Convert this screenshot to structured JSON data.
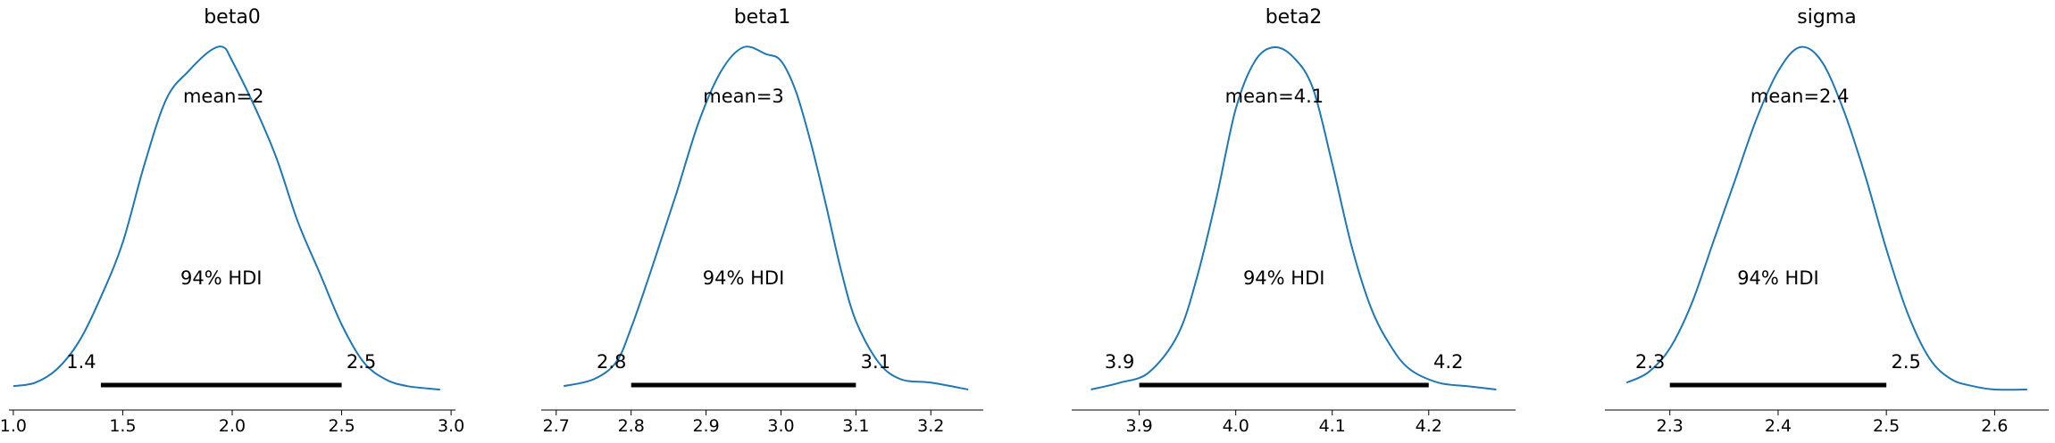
{
  "chart_data": [
    {
      "type": "area",
      "title": "beta0",
      "xlim": [
        0.98,
        3.02
      ],
      "ticks": [
        "1.0",
        "1.5",
        "2.0",
        "2.5",
        "3.0"
      ],
      "mean_label": "mean=2",
      "hdi_label": "94% HDI",
      "hdi": [
        1.4,
        2.5
      ],
      "hdi_label_low": "1.4",
      "hdi_label_high": "2.5",
      "density": {
        "x": [
          1.0,
          1.1,
          1.2,
          1.3,
          1.4,
          1.5,
          1.6,
          1.7,
          1.8,
          1.9,
          1.96,
          2.0,
          2.1,
          2.2,
          2.3,
          2.4,
          2.5,
          2.6,
          2.7,
          2.8,
          2.95
        ],
        "y": [
          0.01,
          0.02,
          0.06,
          0.14,
          0.27,
          0.43,
          0.66,
          0.85,
          0.93,
          0.99,
          1.0,
          0.96,
          0.83,
          0.68,
          0.49,
          0.34,
          0.19,
          0.08,
          0.03,
          0.01,
          0.0
        ]
      }
    },
    {
      "type": "area",
      "title": "beta1",
      "xlim": [
        2.68,
        3.27
      ],
      "ticks": [
        "2.7",
        "2.8",
        "2.9",
        "3.0",
        "3.1",
        "3.2"
      ],
      "mean_label": "mean=3",
      "hdi_label": "94% HDI",
      "hdi": [
        2.8,
        3.1
      ],
      "hdi_label_low": "2.8",
      "hdi_label_high": "3.1",
      "density": {
        "x": [
          2.71,
          2.75,
          2.78,
          2.8,
          2.83,
          2.86,
          2.89,
          2.92,
          2.95,
          2.98,
          3.0,
          3.02,
          3.04,
          3.06,
          3.08,
          3.1,
          3.13,
          3.16,
          3.2,
          3.25
        ],
        "y": [
          0.01,
          0.03,
          0.08,
          0.18,
          0.37,
          0.57,
          0.78,
          0.93,
          1.0,
          0.98,
          0.96,
          0.87,
          0.72,
          0.54,
          0.35,
          0.2,
          0.08,
          0.03,
          0.02,
          0.0
        ]
      }
    },
    {
      "type": "area",
      "title": "beta2",
      "xlim": [
        3.83,
        4.29
      ],
      "ticks": [
        "3.9",
        "4.0",
        "4.1",
        "4.2"
      ],
      "mean_label": "mean=4.1",
      "hdi_label": "94% HDI",
      "hdi": [
        3.9,
        4.2
      ],
      "hdi_label_low": "3.9",
      "hdi_label_high": "4.2",
      "density": {
        "x": [
          3.85,
          3.88,
          3.91,
          3.94,
          3.96,
          3.98,
          4.0,
          4.02,
          4.04,
          4.06,
          4.08,
          4.1,
          4.12,
          4.14,
          4.16,
          4.18,
          4.21,
          4.24,
          4.27
        ],
        "y": [
          0.0,
          0.02,
          0.05,
          0.16,
          0.33,
          0.56,
          0.82,
          0.96,
          1.0,
          0.97,
          0.88,
          0.66,
          0.42,
          0.24,
          0.13,
          0.06,
          0.02,
          0.01,
          0.0
        ]
      }
    },
    {
      "type": "area",
      "title": "sigma",
      "xlim": [
        2.24,
        2.65
      ],
      "ticks": [
        "2.3",
        "2.4",
        "2.5",
        "2.6"
      ],
      "mean_label": "mean=2.4",
      "hdi_label": "94% HDI",
      "hdi": [
        2.3,
        2.5
      ],
      "hdi_label_low": "2.3",
      "hdi_label_high": "2.5",
      "density": {
        "x": [
          2.26,
          2.28,
          2.3,
          2.32,
          2.34,
          2.36,
          2.38,
          2.4,
          2.42,
          2.44,
          2.46,
          2.48,
          2.5,
          2.52,
          2.54,
          2.56,
          2.58,
          2.6,
          2.63
        ],
        "y": [
          0.02,
          0.05,
          0.12,
          0.25,
          0.43,
          0.61,
          0.79,
          0.93,
          1.0,
          0.96,
          0.82,
          0.63,
          0.41,
          0.22,
          0.09,
          0.03,
          0.01,
          0.0,
          0.0
        ]
      }
    }
  ],
  "colors": {
    "density": "#1f77b4",
    "hdi_bar": "#000000",
    "axis": "#000000"
  }
}
